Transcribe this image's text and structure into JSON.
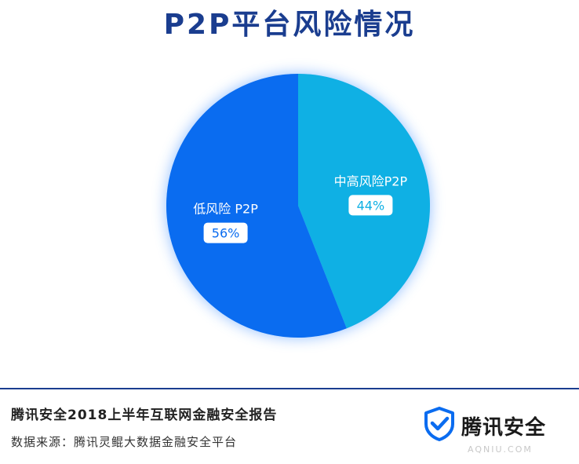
{
  "header": {
    "title": "P2P平台风险情况"
  },
  "chart_data": {
    "type": "pie",
    "slices": [
      {
        "label": "中高风险P2P",
        "value": 44,
        "value_label": "44%",
        "color": "#0fb0e4"
      },
      {
        "label": "低风险 P2P",
        "value": 56,
        "value_label": "56%",
        "color": "#0a6cf0"
      }
    ],
    "start": "top, clockwise"
  },
  "footer": {
    "report_title": "腾讯安全2018上半年互联网金融安全报告",
    "source": "数据来源：腾讯灵鲲大数据金融安全平台"
  },
  "brand": {
    "name": "腾讯安全",
    "icon": "shield-check-icon",
    "color": "#0a6cf0"
  },
  "watermark": {
    "text": "AQNIU.COM"
  }
}
